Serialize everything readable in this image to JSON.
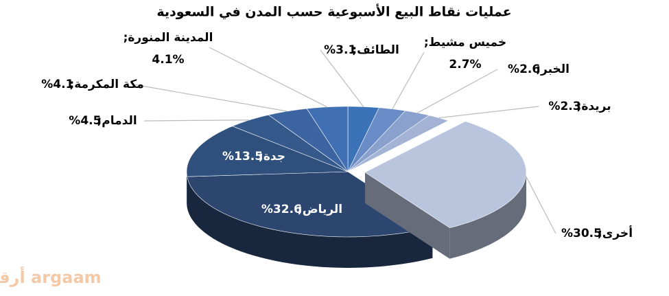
{
  "chart_data": {
    "type": "pie3d",
    "title": "عمليات نقاط البيع الأسبوعية حسب المدن في السعودية",
    "categories": [
      "الطائف",
      "خميس مشيط",
      "الخبر",
      "بريدة",
      "أخرى",
      "الرياض",
      "جدة",
      "الدمام",
      "مكة المكرمة",
      "المدينة المنورة"
    ],
    "values": [
      3.1,
      2.7,
      2.6,
      2.3,
      30.5,
      32.6,
      13.5,
      4.5,
      4.1,
      4.1
    ],
    "value_labels": [
      "3.1%",
      "2.7%",
      "2.6%",
      "2.3%",
      "30.5%",
      "32.6%",
      "13.5%",
      "4.5%",
      "4.1%",
      "4.1%"
    ],
    "label_separator": ";",
    "colors": [
      "#3b72b8",
      "#6a8cc6",
      "#8aa1ce",
      "#a3b3d6",
      "#b9c5dd",
      "#2c4670",
      "#2f4f7c",
      "#36598c",
      "#3b64a0",
      "#4070b3"
    ],
    "exploded": [
      4
    ],
    "watermark": "أرقام argaam"
  }
}
